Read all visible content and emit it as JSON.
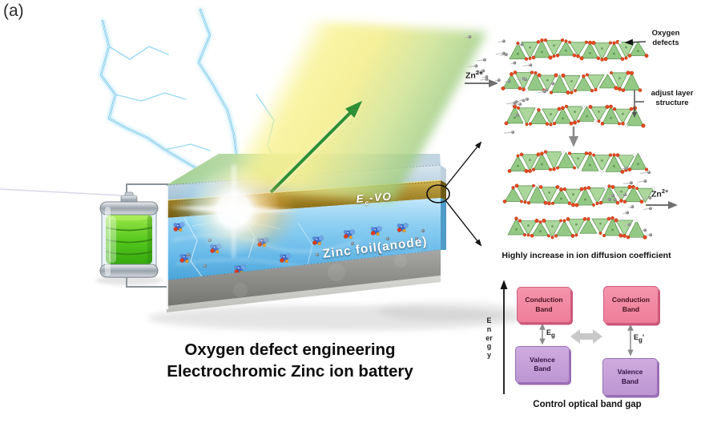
{
  "figure_label": "(a)",
  "device": {
    "electrochromic_layer": {
      "base": "E",
      "sub": "c",
      "rest": "-VO"
    },
    "anode_label": "Zinc foil(anode)"
  },
  "caption": {
    "line1": "Oxygen defect engineering",
    "line2": "Electrochromic Zinc ion battery"
  },
  "structure_panel": {
    "zn_in": {
      "base": "Zn",
      "sup": "2+"
    },
    "zn_out": {
      "base": "Zn",
      "sup": "2+"
    },
    "oxygen_defects": {
      "line1": "Oxygen",
      "line2": "defects"
    },
    "adjust_layer": {
      "line1": "adjust layer",
      "line2": "structure"
    },
    "diffusion_caption": "Highly increase in ion diffusion coefficient"
  },
  "band_diagram": {
    "energy_axis": "Energy",
    "left": {
      "conduction_line1": "Conduction",
      "conduction_line2": "Band",
      "valence_line1": "Valence",
      "valence_line2": "Band",
      "gap": {
        "base": "E",
        "sub": "g",
        "suffix": ""
      }
    },
    "right": {
      "conduction_line1": "Conduction",
      "conduction_line2": "Band",
      "valence_line1": "Valence",
      "valence_line2": "Band",
      "gap": {
        "base": "E",
        "sub": "g",
        "suffix": "'"
      }
    },
    "caption": "Control optical band gap"
  },
  "colors": {
    "lightning_blue": "#49b4e4",
    "beam_yellow": "#f4f0a0",
    "beam_green": "#93ca7e",
    "gold_layer": "#97791f",
    "electrolyte_blue": "#7cc4ec",
    "zinc_gray": "#8d8d89",
    "battery_green": "#52c61c",
    "crystal_green": "#8cc47c",
    "oxygen_red": "#e6491f",
    "conduction_pink": "#ee7e99",
    "valence_purple": "#c49fd8"
  }
}
